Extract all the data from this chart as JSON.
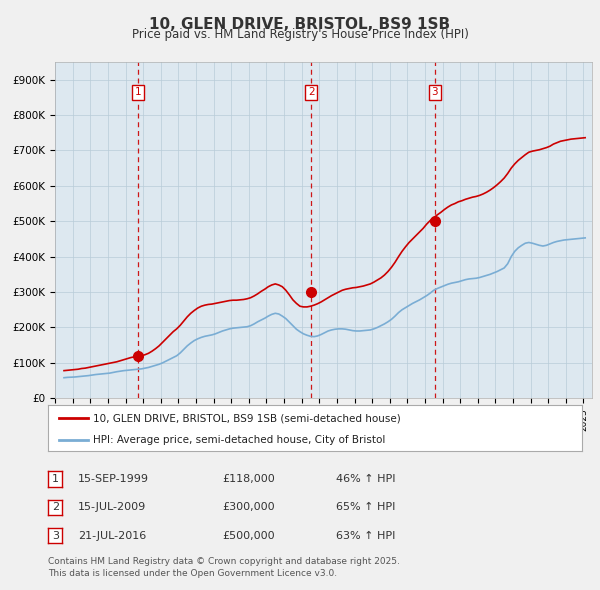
{
  "title": "10, GLEN DRIVE, BRISTOL, BS9 1SB",
  "subtitle": "Price paid vs. HM Land Registry's House Price Index (HPI)",
  "ylim": [
    0,
    950000
  ],
  "yticks": [
    0,
    100000,
    200000,
    300000,
    400000,
    500000,
    600000,
    700000,
    800000,
    900000
  ],
  "ytick_labels": [
    "£0",
    "£100K",
    "£200K",
    "£300K",
    "£400K",
    "£500K",
    "£600K",
    "£700K",
    "£800K",
    "£900K"
  ],
  "sale_color": "#cc0000",
  "hpi_color": "#7aadd4",
  "vline_color": "#cc0000",
  "plot_bg_color": "#dde8f0",
  "background_color": "#f0f0f0",
  "purchases": [
    {
      "date_num": 1999.71,
      "price": 118000,
      "label": "1"
    },
    {
      "date_num": 2009.54,
      "price": 300000,
      "label": "2"
    },
    {
      "date_num": 2016.55,
      "price": 500000,
      "label": "3"
    }
  ],
  "legend_sale_label": "10, GLEN DRIVE, BRISTOL, BS9 1SB (semi-detached house)",
  "legend_hpi_label": "HPI: Average price, semi-detached house, City of Bristol",
  "table_rows": [
    [
      "1",
      "15-SEP-1999",
      "£118,000",
      "46% ↑ HPI"
    ],
    [
      "2",
      "15-JUL-2009",
      "£300,000",
      "65% ↑ HPI"
    ],
    [
      "3",
      "21-JUL-2016",
      "£500,000",
      "63% ↑ HPI"
    ]
  ],
  "footnote": "Contains HM Land Registry data © Crown copyright and database right 2025.\nThis data is licensed under the Open Government Licence v3.0.",
  "years_hpi": [
    1995.5,
    1995.7,
    1995.9,
    1996.1,
    1996.3,
    1996.5,
    1996.7,
    1996.9,
    1997.1,
    1997.3,
    1997.5,
    1997.7,
    1997.9,
    1998.1,
    1998.3,
    1998.5,
    1998.7,
    1998.9,
    1999.1,
    1999.3,
    1999.5,
    1999.7,
    1999.9,
    2000.1,
    2000.3,
    2000.5,
    2000.7,
    2000.9,
    2001.1,
    2001.3,
    2001.5,
    2001.7,
    2001.9,
    2002.1,
    2002.3,
    2002.5,
    2002.7,
    2002.9,
    2003.1,
    2003.3,
    2003.5,
    2003.7,
    2003.9,
    2004.1,
    2004.3,
    2004.5,
    2004.7,
    2004.9,
    2005.1,
    2005.3,
    2005.5,
    2005.7,
    2005.9,
    2006.1,
    2006.3,
    2006.5,
    2006.7,
    2006.9,
    2007.1,
    2007.3,
    2007.5,
    2007.7,
    2007.9,
    2008.1,
    2008.3,
    2008.5,
    2008.7,
    2008.9,
    2009.1,
    2009.3,
    2009.5,
    2009.7,
    2009.9,
    2010.1,
    2010.3,
    2010.5,
    2010.7,
    2010.9,
    2011.1,
    2011.3,
    2011.5,
    2011.7,
    2011.9,
    2012.1,
    2012.3,
    2012.5,
    2012.7,
    2012.9,
    2013.1,
    2013.3,
    2013.5,
    2013.7,
    2013.9,
    2014.1,
    2014.3,
    2014.5,
    2014.7,
    2014.9,
    2015.1,
    2015.3,
    2015.5,
    2015.7,
    2015.9,
    2016.1,
    2016.3,
    2016.5,
    2016.7,
    2016.9,
    2017.1,
    2017.3,
    2017.5,
    2017.7,
    2017.9,
    2018.1,
    2018.3,
    2018.5,
    2018.7,
    2018.9,
    2019.1,
    2019.3,
    2019.5,
    2019.7,
    2019.9,
    2020.1,
    2020.3,
    2020.5,
    2020.7,
    2020.9,
    2021.1,
    2021.3,
    2021.5,
    2021.7,
    2021.9,
    2022.1,
    2022.3,
    2022.5,
    2022.7,
    2022.9,
    2023.1,
    2023.3,
    2023.5,
    2023.7,
    2023.9,
    2024.1,
    2024.3,
    2024.5,
    2024.7,
    2024.9,
    2025.1
  ],
  "hpi_values": [
    58000,
    59000,
    59500,
    60000,
    61000,
    62000,
    63000,
    64000,
    65500,
    67000,
    68000,
    69000,
    70000,
    71000,
    73000,
    75000,
    76500,
    78000,
    79000,
    80000,
    81000,
    82000,
    83000,
    85000,
    87000,
    90000,
    93000,
    96000,
    100000,
    105000,
    110000,
    115000,
    120000,
    128000,
    138000,
    148000,
    156000,
    163000,
    168000,
    172000,
    175000,
    177000,
    179000,
    182000,
    186000,
    190000,
    193000,
    196000,
    198000,
    199000,
    200000,
    201000,
    202000,
    205000,
    210000,
    216000,
    221000,
    226000,
    232000,
    237000,
    240000,
    238000,
    232000,
    225000,
    215000,
    205000,
    195000,
    188000,
    182000,
    178000,
    175000,
    174000,
    176000,
    180000,
    185000,
    190000,
    193000,
    195000,
    196000,
    196000,
    195000,
    193000,
    191000,
    190000,
    190000,
    191000,
    192000,
    193000,
    196000,
    200000,
    205000,
    210000,
    216000,
    223000,
    232000,
    242000,
    250000,
    256000,
    262000,
    268000,
    273000,
    278000,
    284000,
    290000,
    297000,
    305000,
    310000,
    314000,
    318000,
    322000,
    325000,
    327000,
    329000,
    332000,
    335000,
    337000,
    338000,
    339000,
    341000,
    344000,
    347000,
    350000,
    354000,
    358000,
    363000,
    368000,
    380000,
    400000,
    415000,
    425000,
    432000,
    438000,
    440000,
    438000,
    435000,
    432000,
    430000,
    432000,
    436000,
    440000,
    443000,
    445000,
    447000,
    448000,
    449000,
    450000,
    451000,
    452000,
    453000
  ],
  "years_sale": [
    1995.5,
    1995.7,
    1995.9,
    1996.1,
    1996.3,
    1996.5,
    1996.7,
    1996.9,
    1997.1,
    1997.3,
    1997.5,
    1997.7,
    1997.9,
    1998.1,
    1998.3,
    1998.5,
    1998.7,
    1998.9,
    1999.1,
    1999.3,
    1999.5,
    1999.7,
    1999.9,
    2000.1,
    2000.3,
    2000.5,
    2000.7,
    2000.9,
    2001.1,
    2001.3,
    2001.5,
    2001.7,
    2001.9,
    2002.1,
    2002.3,
    2002.5,
    2002.7,
    2002.9,
    2003.1,
    2003.3,
    2003.5,
    2003.7,
    2003.9,
    2004.1,
    2004.3,
    2004.5,
    2004.7,
    2004.9,
    2005.1,
    2005.3,
    2005.5,
    2005.7,
    2005.9,
    2006.1,
    2006.3,
    2006.5,
    2006.7,
    2006.9,
    2007.1,
    2007.3,
    2007.5,
    2007.7,
    2007.9,
    2008.1,
    2008.3,
    2008.5,
    2008.7,
    2008.9,
    2009.1,
    2009.3,
    2009.5,
    2009.7,
    2009.9,
    2010.1,
    2010.3,
    2010.5,
    2010.7,
    2010.9,
    2011.1,
    2011.3,
    2011.5,
    2011.7,
    2011.9,
    2012.1,
    2012.3,
    2012.5,
    2012.7,
    2012.9,
    2013.1,
    2013.3,
    2013.5,
    2013.7,
    2013.9,
    2014.1,
    2014.3,
    2014.5,
    2014.7,
    2014.9,
    2015.1,
    2015.3,
    2015.5,
    2015.7,
    2015.9,
    2016.1,
    2016.3,
    2016.5,
    2016.7,
    2016.9,
    2017.1,
    2017.3,
    2017.5,
    2017.7,
    2017.9,
    2018.1,
    2018.3,
    2018.5,
    2018.7,
    2018.9,
    2019.1,
    2019.3,
    2019.5,
    2019.7,
    2019.9,
    2020.1,
    2020.3,
    2020.5,
    2020.7,
    2020.9,
    2021.1,
    2021.3,
    2021.5,
    2021.7,
    2021.9,
    2022.1,
    2022.3,
    2022.5,
    2022.7,
    2022.9,
    2023.1,
    2023.3,
    2023.5,
    2023.7,
    2023.9,
    2024.1,
    2024.3,
    2024.5,
    2024.7,
    2024.9,
    2025.1
  ],
  "sale_values": [
    78000,
    79000,
    80000,
    81000,
    82000,
    84000,
    85000,
    87000,
    89000,
    91000,
    93000,
    95000,
    97000,
    99000,
    101000,
    103000,
    106000,
    109000,
    112000,
    115000,
    117000,
    118000,
    120000,
    123000,
    127000,
    133000,
    140000,
    148000,
    158000,
    168000,
    178000,
    188000,
    196000,
    206000,
    218000,
    230000,
    240000,
    248000,
    255000,
    260000,
    263000,
    265000,
    266000,
    268000,
    270000,
    272000,
    274000,
    276000,
    277000,
    277000,
    278000,
    279000,
    281000,
    284000,
    289000,
    295000,
    302000,
    308000,
    315000,
    320000,
    323000,
    320000,
    315000,
    305000,
    292000,
    278000,
    268000,
    260000,
    258000,
    258000,
    260000,
    263000,
    267000,
    272000,
    278000,
    284000,
    290000,
    295000,
    300000,
    305000,
    308000,
    310000,
    312000,
    313000,
    315000,
    317000,
    320000,
    323000,
    328000,
    334000,
    340000,
    348000,
    358000,
    370000,
    384000,
    400000,
    415000,
    428000,
    440000,
    450000,
    460000,
    470000,
    480000,
    492000,
    502000,
    510000,
    518000,
    525000,
    533000,
    540000,
    546000,
    550000,
    555000,
    558000,
    562000,
    565000,
    568000,
    570000,
    573000,
    577000,
    582000,
    588000,
    595000,
    603000,
    612000,
    622000,
    635000,
    650000,
    662000,
    672000,
    680000,
    688000,
    695000,
    698000,
    700000,
    702000,
    705000,
    708000,
    712000,
    718000,
    722000,
    726000,
    728000,
    730000,
    732000,
    733000,
    734000,
    735000,
    736000
  ]
}
